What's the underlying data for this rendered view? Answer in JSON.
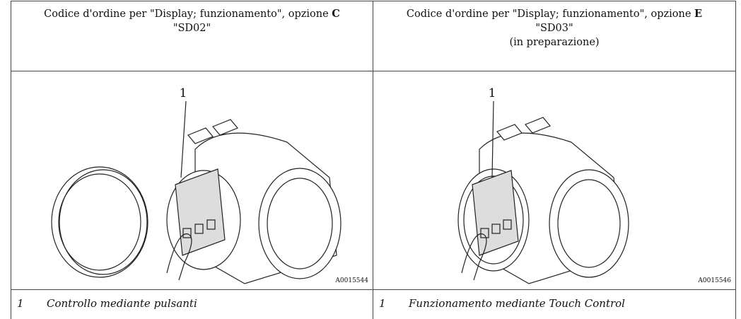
{
  "table": {
    "headers": [
      {
        "text": "Codice d'ordine per \"Display; funzionamento\", opzione ",
        "option": "C",
        "lines": [
          "\"SD02\""
        ]
      },
      {
        "text": "Codice d'ordine per \"Display; funzionamento\", opzione ",
        "option": "E",
        "lines": [
          "\"SD03\"",
          "(in preparazione)"
        ]
      }
    ],
    "figures": [
      {
        "callout": "1",
        "code": "A0015544"
      },
      {
        "callout": "1",
        "code": "A0015546"
      }
    ],
    "captions": [
      {
        "number": "1",
        "text": "Controllo mediante pulsanti"
      },
      {
        "number": "1",
        "text": "Funzionamento mediante Touch Control"
      }
    ]
  }
}
